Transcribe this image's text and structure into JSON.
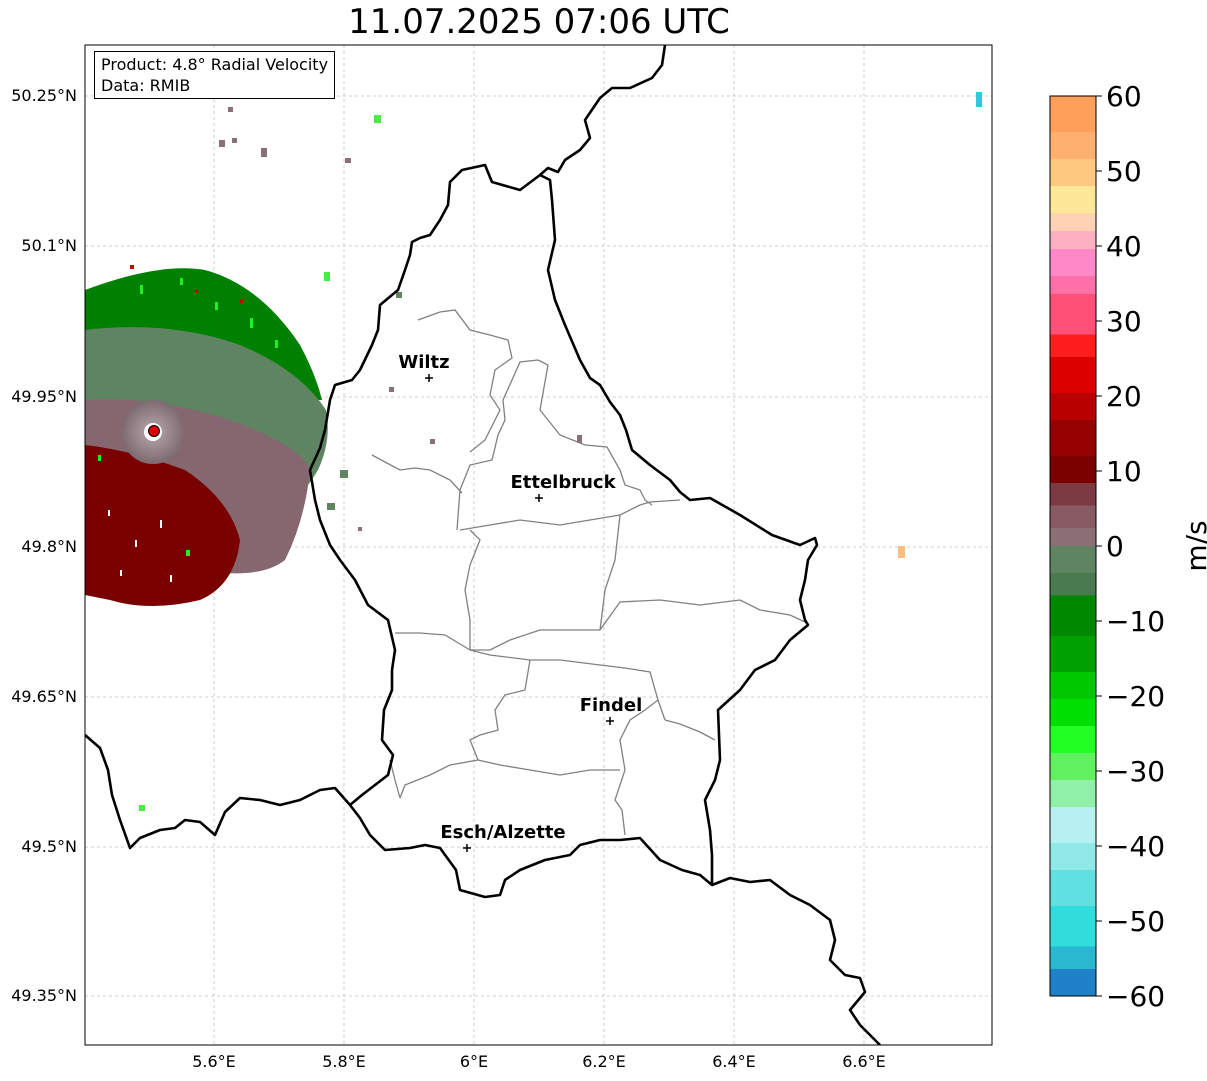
{
  "title": "11.07.2025 07:06 UTC",
  "info": {
    "product": "Product: 4.8° Radial Velocity",
    "source": "Data: RMIB"
  },
  "axes": {
    "x_ticks": [
      "5.6°E",
      "5.8°E",
      "6°E",
      "6.2°E",
      "6.4°E",
      "6.6°E"
    ],
    "y_ticks": [
      "50.25°N",
      "50.1°N",
      "49.95°N",
      "49.8°N",
      "49.65°N",
      "49.5°N",
      "49.35°N"
    ]
  },
  "cities": [
    {
      "name": "Wiltz",
      "lon": 5.93,
      "lat": 49.966
    },
    {
      "name": "Ettelbruck",
      "lon": 6.1,
      "lat": 49.847
    },
    {
      "name": "Findel",
      "lon": 6.21,
      "lat": 49.624
    },
    {
      "name": "Esch/Alzette",
      "lon": 5.99,
      "lat": 49.497
    }
  ],
  "colorbar": {
    "label": "m/s",
    "ticks": [
      "60",
      "50",
      "40",
      "30",
      "20",
      "10",
      "0",
      "−10",
      "−20",
      "−30",
      "−40",
      "−50",
      "−60"
    ],
    "colors": {
      "pos_high": "#ff9f5a",
      "pos_light": "#ffe79a",
      "pink": "#ff88c8",
      "red": "#ff1e1e",
      "dark_red": "#7a0000",
      "zero_mauve": "#8c6f74",
      "zero_green": "#5f8462",
      "green": "#008800",
      "bright_green": "#22ff22",
      "pale_cyan": "#b6f0f0",
      "cyan": "#30dcdc",
      "blue": "#2080c8"
    }
  },
  "radar_site": {
    "lon": 5.505,
    "lat": 49.914,
    "color": "#dd0000"
  }
}
